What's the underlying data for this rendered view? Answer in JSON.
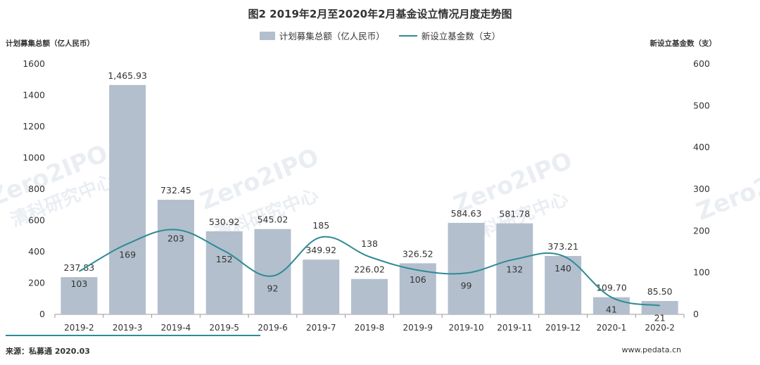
{
  "chart_data": {
    "type": "bar+line",
    "title": "图2 2019年2月至2020年2月基金设立情况月度走势图",
    "categories": [
      "2019-2",
      "2019-3",
      "2019-4",
      "2019-5",
      "2019-6",
      "2019-7",
      "2019-8",
      "2019-9",
      "2019-10",
      "2019-11",
      "2019-12",
      "2020-1",
      "2020-2"
    ],
    "bar_series": {
      "name": "计划募集总额（亿人民币）",
      "values": [
        237.83,
        1465.93,
        732.45,
        530.92,
        545.02,
        349.92,
        226.02,
        326.52,
        584.63,
        581.78,
        373.21,
        109.7,
        85.5
      ],
      "labels": [
        "237.83",
        "1,465.93",
        "732.45",
        "530.92",
        "545.02",
        "349.92",
        "226.02",
        "326.52",
        "584.63",
        "581.78",
        "373.21",
        "109.70",
        "85.50"
      ],
      "color": "#b3bfcd"
    },
    "line_series": {
      "name": "新设立基金数（支）",
      "values": [
        103,
        169,
        203,
        152,
        92,
        185,
        138,
        106,
        99,
        132,
        140,
        41,
        21
      ],
      "color": "#2e8b95"
    },
    "left_axis": {
      "label": "计划募集总额（亿人民币）",
      "range": [
        0,
        1600
      ],
      "ticks": [
        0,
        200,
        400,
        600,
        800,
        1000,
        1200,
        1400,
        1600
      ]
    },
    "right_axis": {
      "label": "新设立基金数（支）",
      "range": [
        0,
        600
      ],
      "ticks": [
        0,
        100,
        200,
        300,
        400,
        500,
        600
      ]
    },
    "legend_position": "top-center",
    "grid": false
  },
  "footer": {
    "source": "来源：私募通 2020.03",
    "website": "www.pedata.cn"
  },
  "watermark": {
    "logo_text": "Zero2IPO",
    "cn_text": "清科研究中心",
    "en_text": "Zero2IPO Research"
  }
}
